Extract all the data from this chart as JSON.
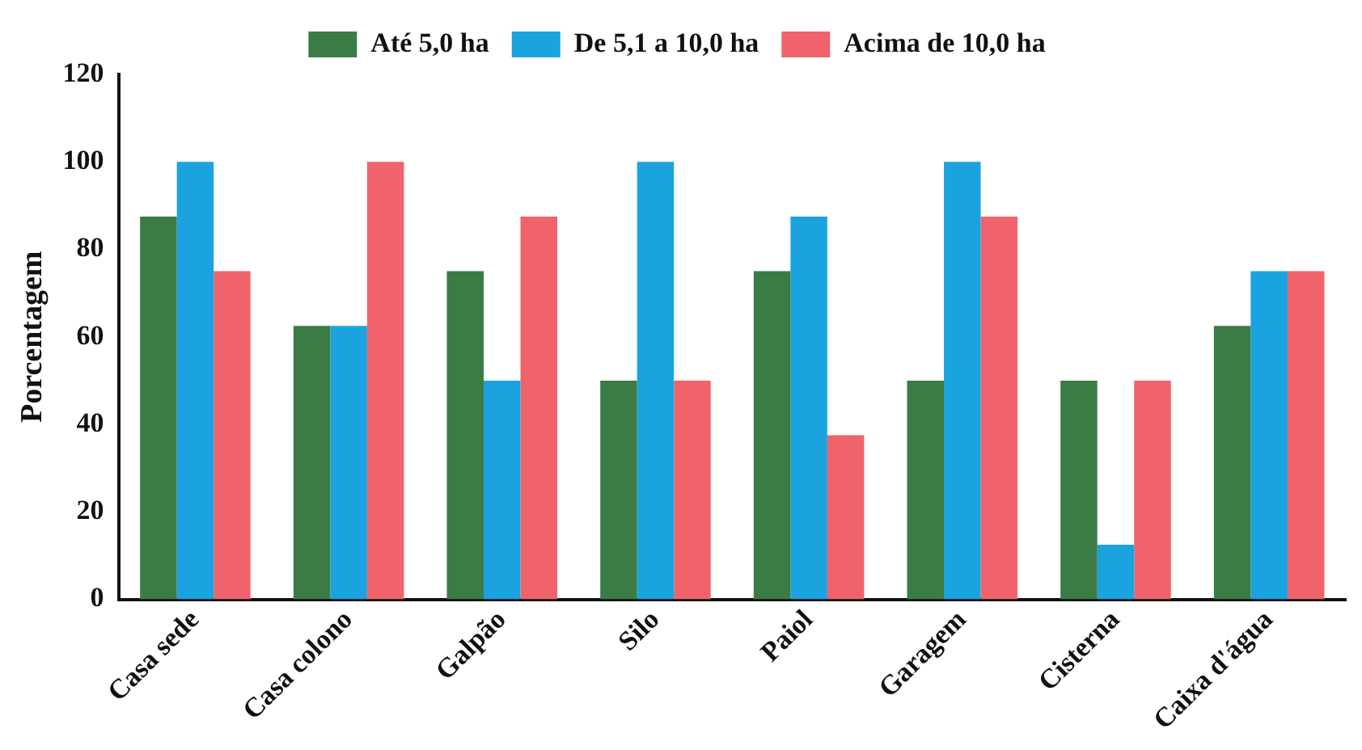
{
  "chart_data": {
    "type": "bar",
    "ylabel": "Porcentagem",
    "categories": [
      "Casa sede",
      "Casa colono",
      "Galpão",
      "Silo",
      "Paiol",
      "Garagem",
      "Cisterna",
      "Caixa d'água"
    ],
    "series": [
      {
        "name": "Até 5,0 ha",
        "color": "#3b7b46",
        "values": [
          87.5,
          62.5,
          75,
          50,
          75,
          50,
          50,
          62.5
        ]
      },
      {
        "name": "De 5,1 a 10,0 ha",
        "color": "#1ba3df",
        "values": [
          100,
          62.5,
          50,
          100,
          87.5,
          100,
          12.5,
          75
        ]
      },
      {
        "name": "Acima de 10,0 ha",
        "color": "#f0636b",
        "values": [
          75,
          100,
          87.5,
          50,
          37.5,
          87.5,
          50,
          75
        ]
      }
    ],
    "ylim": [
      0,
      120
    ],
    "yticks": [
      0,
      20,
      40,
      60,
      80,
      100,
      120
    ],
    "grid": false,
    "legend": "top"
  }
}
